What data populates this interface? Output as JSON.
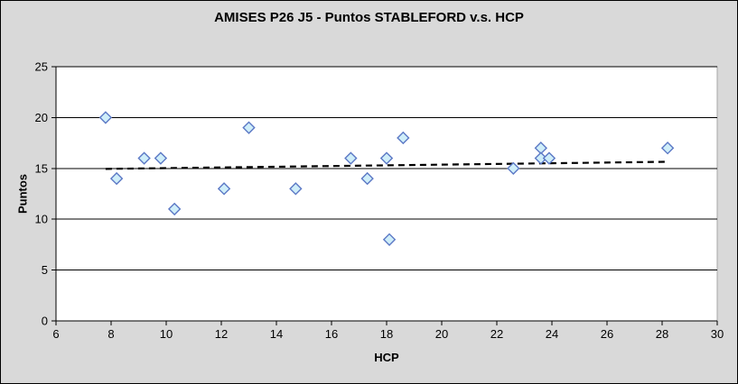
{
  "chart_data": {
    "type": "scatter",
    "title": "AMISES P26 J5 - Puntos STABLEFORD v.s. HCP",
    "xlabel": "HCP",
    "ylabel": "Puntos",
    "xlim": [
      6,
      30
    ],
    "ylim": [
      0,
      25
    ],
    "x_ticks": [
      6,
      8,
      10,
      12,
      14,
      16,
      18,
      20,
      22,
      24,
      26,
      28,
      30
    ],
    "y_ticks": [
      0,
      5,
      10,
      15,
      20,
      25
    ],
    "grid": "horizontal",
    "legend": "none",
    "points": [
      [
        7.8,
        20
      ],
      [
        8.2,
        14
      ],
      [
        9.2,
        16
      ],
      [
        9.8,
        16
      ],
      [
        10.3,
        11
      ],
      [
        12.1,
        13
      ],
      [
        13.0,
        19
      ],
      [
        14.7,
        13
      ],
      [
        16.7,
        16
      ],
      [
        17.3,
        14
      ],
      [
        18.0,
        16
      ],
      [
        18.1,
        8
      ],
      [
        18.6,
        18
      ],
      [
        22.6,
        15
      ],
      [
        23.6,
        17
      ],
      [
        23.6,
        16
      ],
      [
        23.9,
        16
      ],
      [
        28.2,
        17
      ]
    ],
    "trendline": {
      "type": "linear",
      "style": "dashed",
      "start": [
        7.8,
        14.95
      ],
      "end": [
        28.2,
        15.65
      ]
    },
    "colors": {
      "chart_background": "#d9d9d9",
      "plot_background": "#ffffff",
      "gridline": "#000000",
      "axis": "#000000",
      "plot_border": "#a6a6a6",
      "marker_fill": "#cfeef9",
      "marker_stroke": "#5b78c5",
      "trendline": "#000000",
      "text": "#000000"
    }
  }
}
